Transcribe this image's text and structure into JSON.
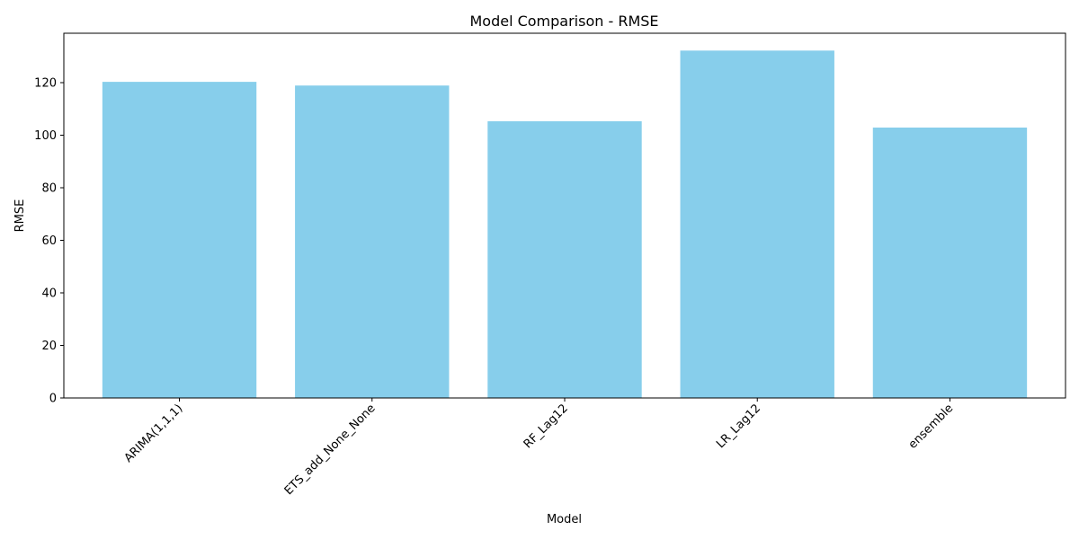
{
  "chart_data": {
    "type": "bar",
    "title": "Model Comparison - RMSE",
    "xlabel": "Model",
    "ylabel": "RMSE",
    "categories": [
      "ARIMA(1,1,1)",
      "ETS_add_None_None",
      "RF_Lag12",
      "LR_Lag12",
      "ensemble"
    ],
    "values": [
      120.3,
      118.9,
      105.3,
      132.2,
      102.9
    ],
    "ylim": [
      0,
      138.8
    ],
    "yticks": [
      0,
      20,
      40,
      60,
      80,
      100,
      120
    ],
    "bar_color": "#87ceeb",
    "grid": false,
    "legend": "none",
    "xtick_rotation_deg": 45
  }
}
